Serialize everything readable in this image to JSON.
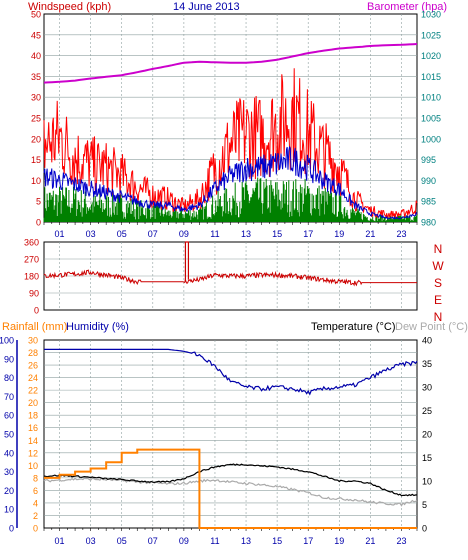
{
  "colors": {
    "wind_speed": "#ff0000",
    "gust": "#ff0000",
    "wind_avg": "#0000cc",
    "wind_base": "#008000",
    "barometer": "#cc00cc",
    "direction": "#cc0000",
    "rainfall": "#ff8000",
    "humidity": "#0000aa",
    "temperature": "#000000",
    "dewpoint": "#aaaaaa",
    "grid": "#8fa0a0",
    "frame": "#000000",
    "left_axis": "#cc0000",
    "right_axis_top": "#008080",
    "left_axis_bottom_rain": "#ff8000",
    "left_axis_bottom_hum": "#0000aa"
  },
  "chart_data": [
    {
      "type": "line",
      "title": "14 June 2013",
      "left_label": "Windspeed (kph)",
      "right_label": "Barometer (hpa)",
      "x_ticks": [
        "01",
        "03",
        "05",
        "07",
        "09",
        "11",
        "13",
        "15",
        "17",
        "19",
        "21",
        "23"
      ],
      "y_left_ticks": [
        "0",
        "5",
        "10",
        "15",
        "20",
        "25",
        "30",
        "35",
        "40",
        "45",
        "50"
      ],
      "y_right_ticks": [
        "980",
        "985",
        "990",
        "995",
        "1000",
        "1005",
        "1010",
        "1015",
        "1020",
        "1025",
        "1030"
      ],
      "ylim_left": [
        0,
        50
      ],
      "ylim_right": [
        980,
        1030
      ],
      "grid": true,
      "x_hours": [
        0,
        1,
        2,
        3,
        4,
        5,
        6,
        7,
        8,
        9,
        10,
        11,
        12,
        13,
        14,
        15,
        16,
        17,
        18,
        19,
        20,
        21,
        22,
        23,
        24
      ],
      "series": [
        {
          "key": "gust",
          "values": [
            20,
            22,
            17,
            15,
            14,
            12,
            9,
            7,
            6,
            4,
            6,
            14,
            20,
            23,
            22,
            25,
            28,
            23,
            18,
            14,
            6,
            3,
            2,
            2,
            4
          ]
        },
        {
          "key": "wind_avg",
          "values": [
            11,
            10,
            9,
            8,
            7,
            6,
            5,
            4,
            4,
            3,
            4,
            8,
            11,
            13,
            13,
            14,
            15,
            13,
            10,
            8,
            4,
            2,
            1,
            1,
            2
          ]
        },
        {
          "key": "wind_base",
          "values": [
            5,
            5,
            5,
            4,
            4,
            4,
            3,
            3,
            2,
            2,
            2,
            4,
            5,
            6,
            6,
            6,
            6,
            6,
            5,
            4,
            2,
            1,
            1,
            1,
            1
          ]
        },
        {
          "key": "barometer",
          "values": [
            1013.5,
            1013.7,
            1014.0,
            1014.5,
            1014.9,
            1015.3,
            1016.0,
            1016.8,
            1017.5,
            1018.3,
            1018.5,
            1018.4,
            1018.3,
            1018.3,
            1018.5,
            1019.0,
            1019.8,
            1020.6,
            1021.2,
            1021.7,
            1022.0,
            1022.3,
            1022.5,
            1022.6,
            1022.8
          ]
        }
      ]
    },
    {
      "type": "line",
      "y_left_ticks": [
        "360",
        "270",
        "180",
        "90",
        "0"
      ],
      "y_right_ticks": [
        "N",
        "W",
        "S",
        "E",
        "N"
      ],
      "ylim": [
        0,
        360
      ],
      "grid": true,
      "x_hours": [
        0,
        1,
        2,
        3,
        4,
        5,
        6,
        7,
        8,
        9,
        10,
        11,
        12,
        13,
        14,
        15,
        16,
        17,
        18,
        19,
        20,
        21,
        22,
        23,
        24
      ],
      "series": [
        {
          "key": "direction",
          "values": [
            180,
            185,
            190,
            200,
            185,
            170,
            150,
            150,
            150,
            150,
            160,
            185,
            180,
            180,
            185,
            185,
            180,
            170,
            160,
            150,
            145,
            145,
            145,
            145,
            145
          ]
        }
      ]
    },
    {
      "type": "line",
      "left_label_rain": "Rainfall (mm)",
      "left_label_hum": "Humidity (%)",
      "right_label_temp": "Temperature (°C)",
      "right_label_dew": "Dew Point (°C)",
      "x_ticks": [
        "01",
        "03",
        "05",
        "07",
        "09",
        "11",
        "13",
        "15",
        "17",
        "19",
        "21",
        "23"
      ],
      "y_rain_ticks": [
        "0",
        "2",
        "4",
        "6",
        "8",
        "10",
        "12",
        "14",
        "16",
        "18",
        "20",
        "22",
        "24",
        "26",
        "28",
        "30"
      ],
      "y_hum_ticks": [
        "0",
        "10",
        "20",
        "30",
        "40",
        "50",
        "60",
        "70",
        "80",
        "90",
        "100"
      ],
      "y_temp_ticks": [
        "0",
        "5",
        "10",
        "15",
        "20",
        "25",
        "30",
        "35",
        "40"
      ],
      "ylim_rain": [
        0,
        30
      ],
      "ylim_hum": [
        0,
        100
      ],
      "ylim_temp": [
        0,
        40
      ],
      "grid": true,
      "x_hours": [
        0,
        1,
        2,
        3,
        4,
        5,
        6,
        7,
        8,
        9,
        10,
        11,
        12,
        13,
        14,
        15,
        16,
        17,
        18,
        19,
        20,
        21,
        22,
        23,
        24
      ],
      "series": [
        {
          "key": "humidity",
          "values": [
            95,
            95,
            95,
            95,
            95,
            95,
            95,
            95,
            95,
            94,
            92,
            86,
            78,
            75,
            74,
            75,
            74,
            72,
            74,
            75,
            76,
            80,
            84,
            87,
            88
          ]
        },
        {
          "key": "temperature",
          "values": [
            11,
            11.2,
            11,
            10.8,
            10.5,
            10.3,
            10,
            9.8,
            9.8,
            10.5,
            12,
            13,
            13.5,
            13.5,
            13.2,
            13,
            12.5,
            12,
            11,
            10,
            10,
            9.5,
            8,
            7,
            7
          ]
        },
        {
          "key": "dewpoint",
          "values": [
            10,
            10.2,
            10.4,
            10.4,
            10.3,
            10.1,
            9.8,
            9.6,
            9.4,
            9.5,
            10,
            10.2,
            9.8,
            9.5,
            9.2,
            8.8,
            8.2,
            7.5,
            6.5,
            6.2,
            6,
            5.5,
            5.2,
            5,
            6
          ]
        },
        {
          "key": "rainfall",
          "values": [
            8,
            8.5,
            9,
            9.5,
            10.5,
            12,
            12.5,
            12.5,
            12.5,
            12.5,
            0,
            0,
            0,
            0,
            0,
            0,
            0,
            0,
            0,
            0,
            0,
            0,
            0,
            0,
            0
          ]
        }
      ]
    }
  ]
}
